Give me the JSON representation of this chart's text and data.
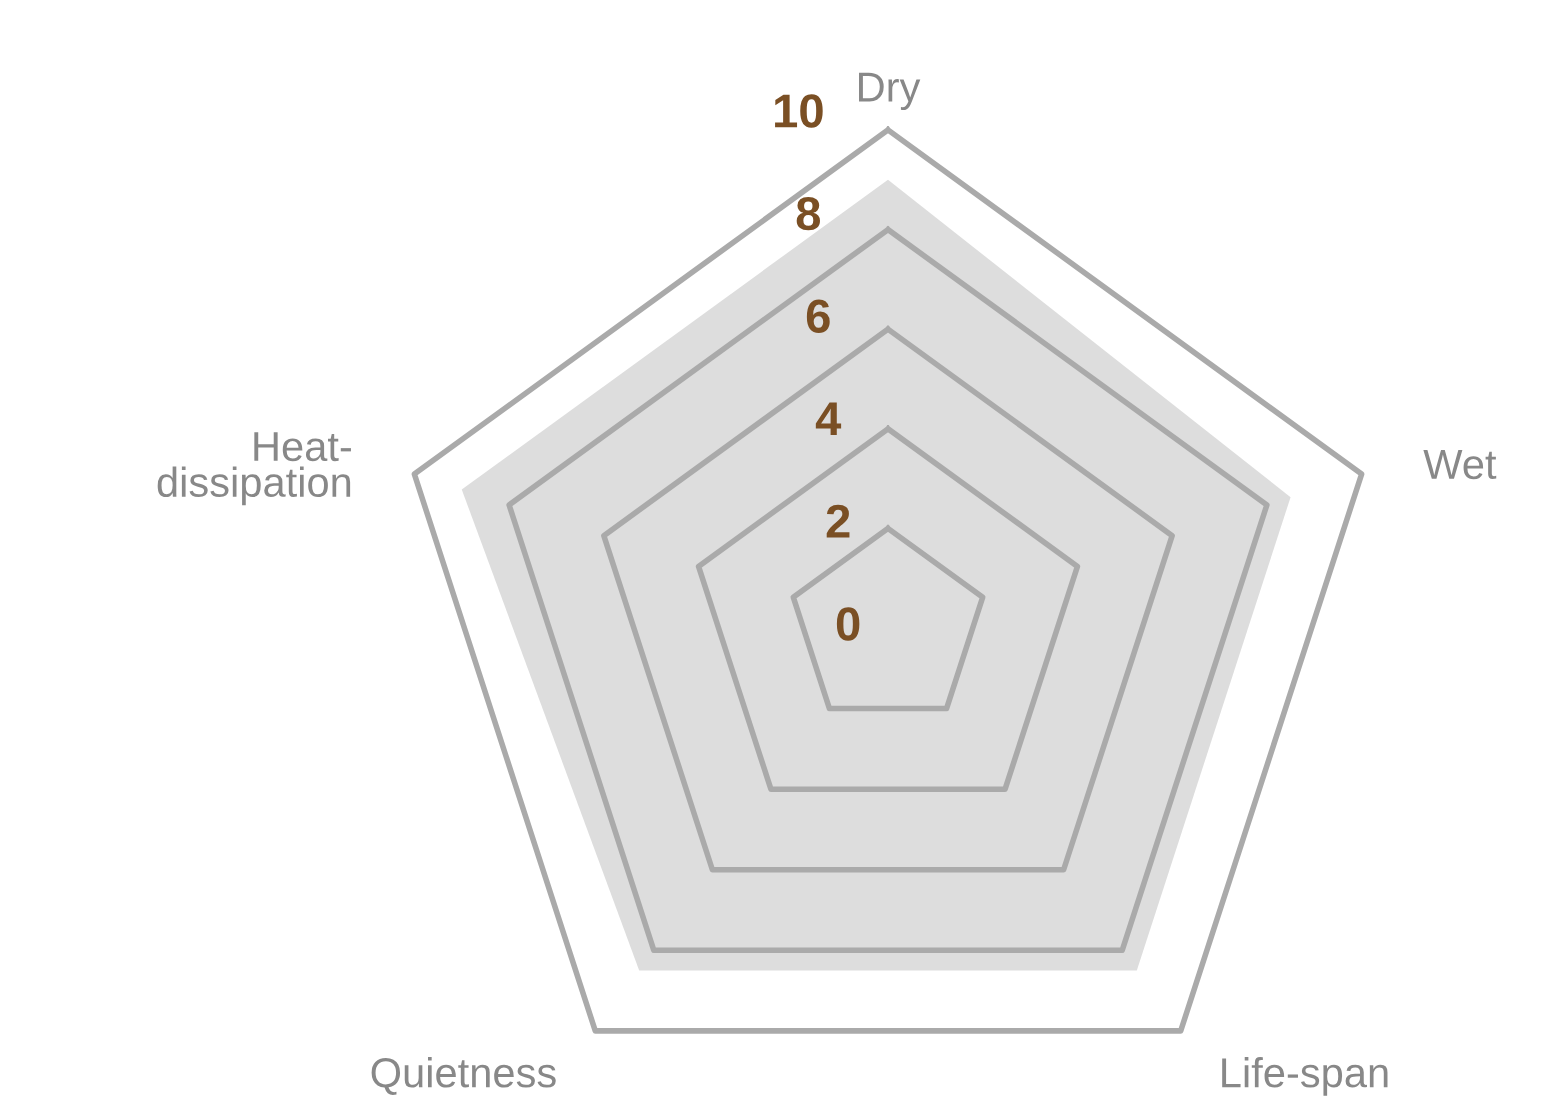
{
  "chart_data": {
    "type": "radar",
    "categories": [
      "Dry",
      "Wet",
      "Life-span",
      "Quietness",
      "Heat-\ndissipation"
    ],
    "series": [
      {
        "color": "#dddddd",
        "values": [
          9,
          8.5,
          8.5,
          8.5,
          9
        ]
      }
    ],
    "ylim": [
      0,
      10
    ],
    "yticks": [
      0,
      2,
      4,
      6,
      8,
      10
    ],
    "grid": true,
    "legend": false
  }
}
